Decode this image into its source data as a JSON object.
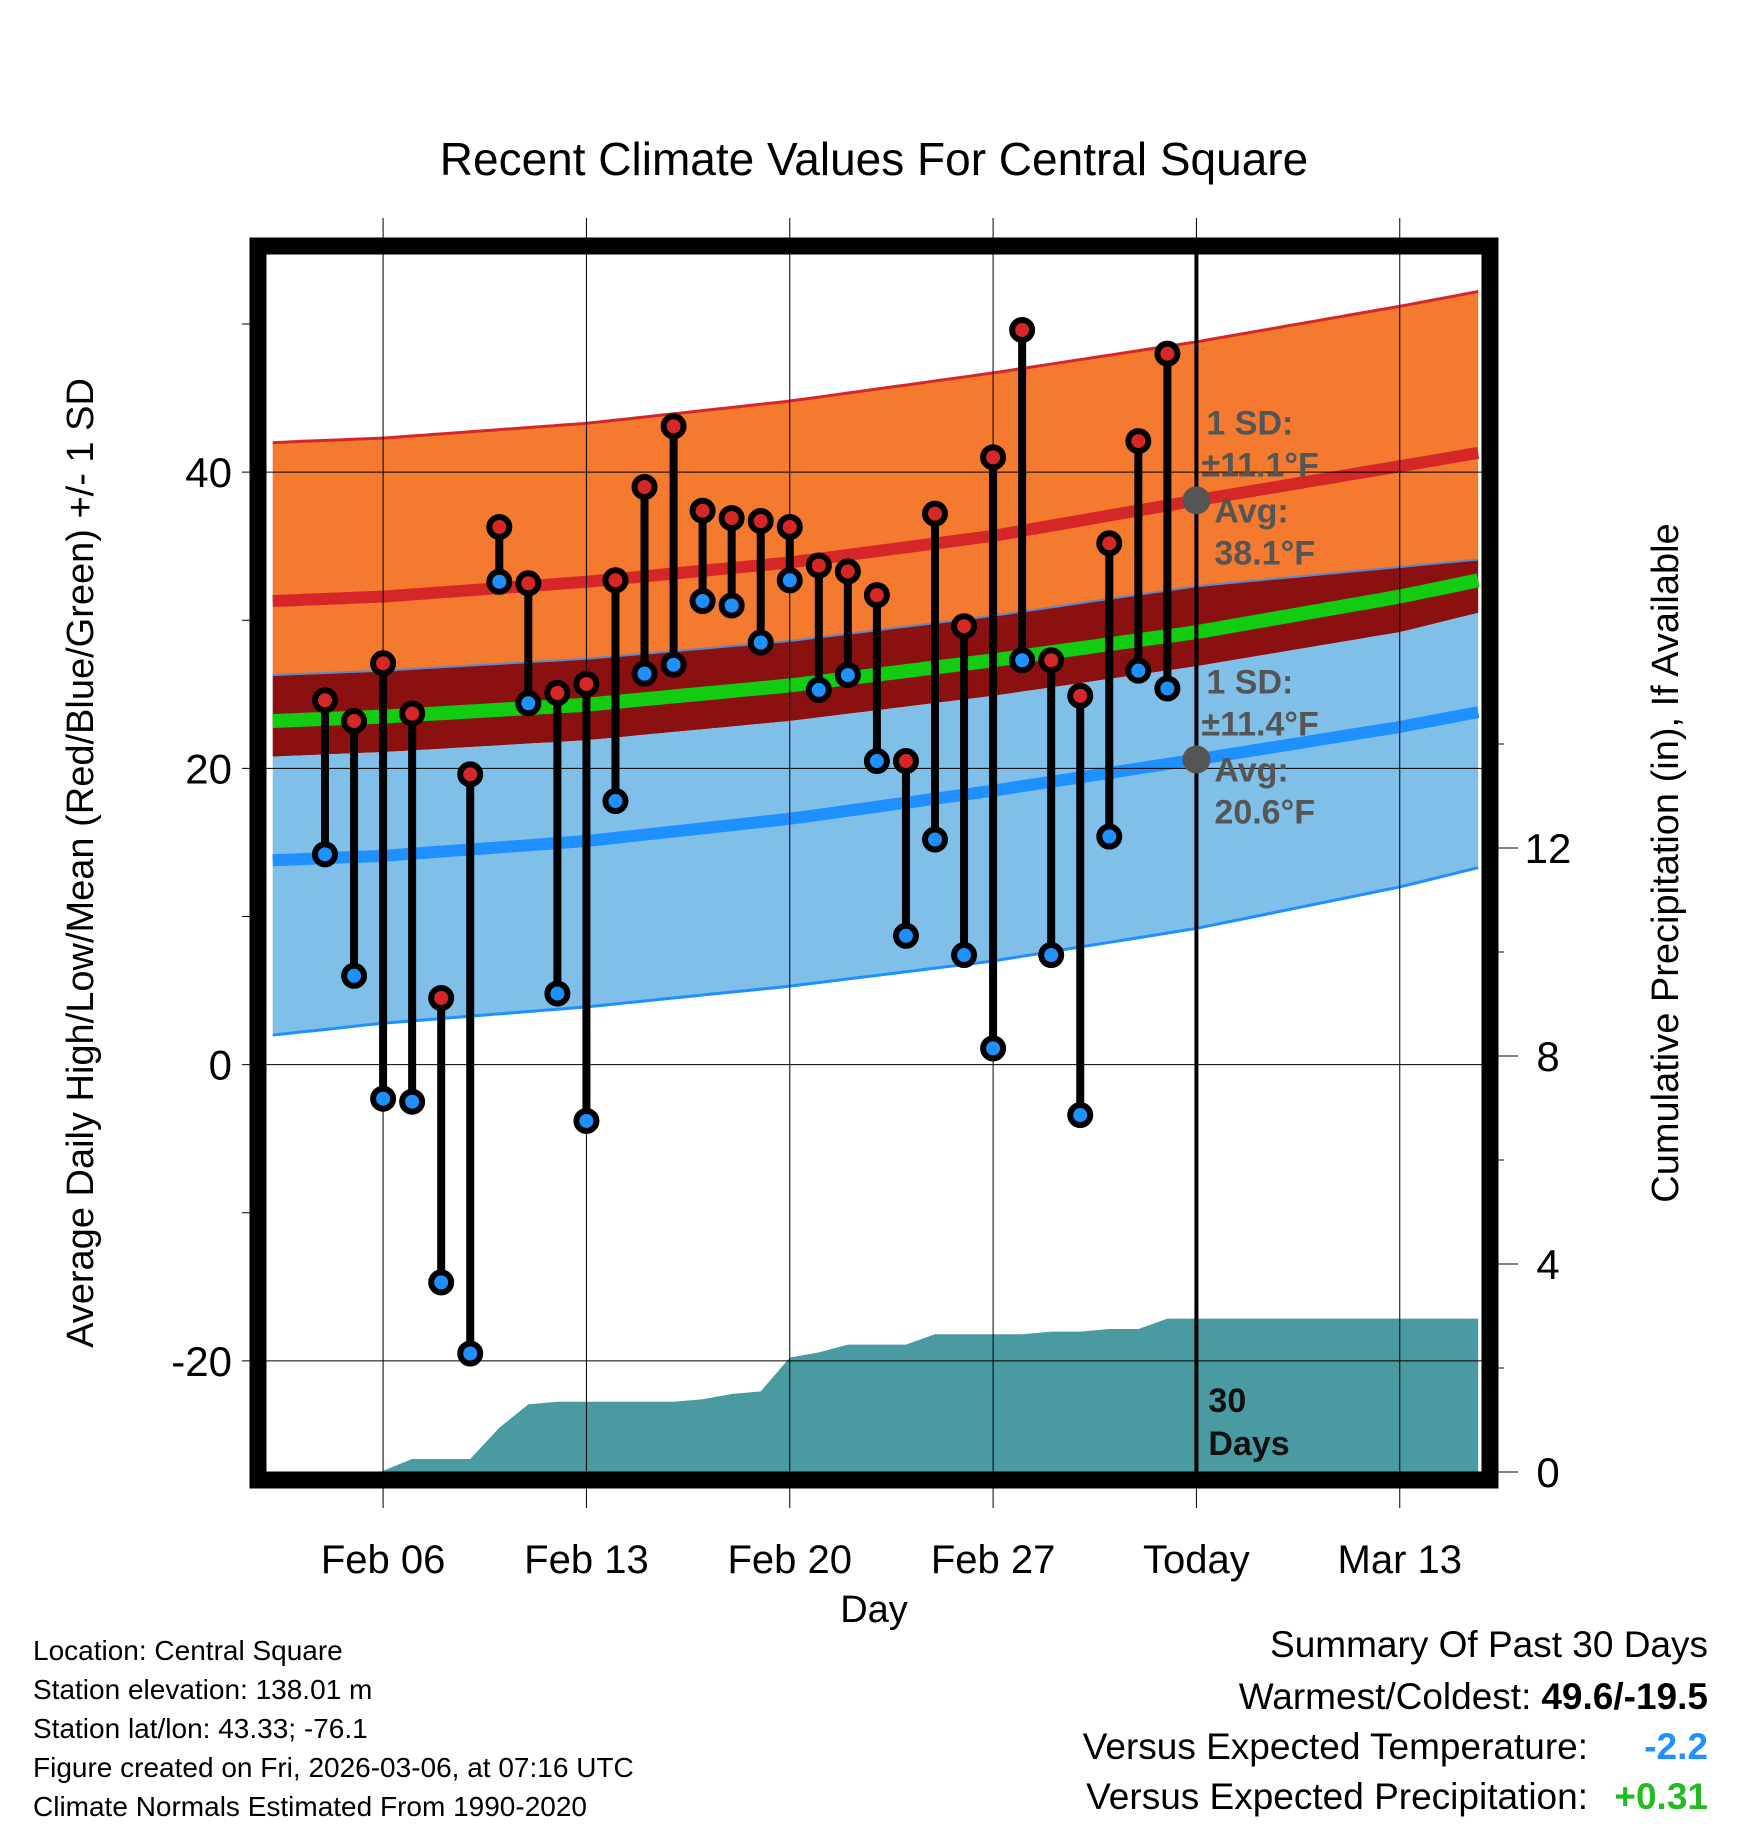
{
  "chart_data": {
    "type": "line",
    "title": "Recent Climate Values For Central Square",
    "xlabel": "Day",
    "ylabel": "Average Daily High/Low/Mean (Red/Blue/Green) +/- 1 SD",
    "y2label": "Cumulative Precipitation (in), If Available",
    "ylim": [
      -27.5,
      55
    ],
    "y2lim": [
      0,
      23.5
    ],
    "y_ticks": [
      -20,
      0,
      20,
      40
    ],
    "y_tick_labels": [
      "-20",
      "0",
      "20",
      "40"
    ],
    "y2_ticks": [
      0,
      4,
      8,
      12
    ],
    "y2_tick_labels": [
      "0",
      "4",
      "8",
      "12"
    ],
    "x_range": [
      -32.1,
      9.9
    ],
    "x_ticks": [
      -28,
      -21,
      -14,
      -7,
      0,
      7
    ],
    "x_tick_labels": [
      "Feb 06",
      "Feb 13",
      "Feb 20",
      "Feb 27",
      "Today",
      "Mar 13"
    ],
    "grid": true,
    "normals": {
      "x": [
        -31.8,
        -28,
        -21,
        -14,
        -7,
        0,
        7,
        9.7
      ],
      "high_upper": [
        42,
        42.3,
        43.3,
        44.8,
        46.7,
        48.8,
        51.2,
        52.2
      ],
      "high_avg": [
        31.3,
        31.6,
        32.6,
        33.9,
        35.7,
        38.1,
        40.4,
        41.3
      ],
      "mean_upper": [
        26.3,
        26.6,
        27.4,
        28.6,
        30.3,
        32.3,
        33.6,
        34.1
      ],
      "mean": [
        23.2,
        23.5,
        24.3,
        25.6,
        27.3,
        29.2,
        31.6,
        32.7
      ],
      "mean_lower": [
        20.8,
        21.1,
        21.9,
        23.2,
        24.9,
        26.9,
        29.2,
        30.5
      ],
      "low_avg": [
        13.8,
        14.1,
        15.1,
        16.6,
        18.5,
        20.6,
        22.8,
        23.8
      ],
      "low_lower": [
        2,
        2.8,
        3.9,
        5.3,
        7,
        9.2,
        12,
        13.3
      ]
    },
    "days_x": [
      -30,
      -29,
      -28,
      -27,
      -26,
      -25,
      -24,
      -23,
      -22,
      -21,
      -20,
      -19,
      -18,
      -17,
      -16,
      -15,
      -14,
      -13,
      -12,
      -11,
      -10,
      -9,
      -8,
      -7,
      -6,
      -5,
      -4,
      -3,
      -2,
      -1
    ],
    "series": [
      {
        "name": "Daily High",
        "color": "#d62728",
        "values": [
          24.6,
          23.2,
          27.1,
          23.7,
          4.5,
          19.6,
          36.3,
          32.5,
          25.1,
          25.7,
          32.7,
          39.0,
          43.1,
          37.4,
          36.9,
          36.7,
          36.3,
          33.7,
          33.3,
          31.7,
          20.5,
          37.2,
          29.6,
          41.0,
          49.6,
          27.3,
          24.9,
          35.2,
          42.1,
          48.0
        ]
      },
      {
        "name": "Daily Low",
        "color": "#1e90ff",
        "values": [
          14.2,
          6.0,
          -2.3,
          -2.5,
          -14.7,
          -19.5,
          32.6,
          24.4,
          4.8,
          -3.8,
          17.8,
          26.4,
          27.0,
          31.3,
          31.0,
          28.5,
          32.7,
          25.3,
          26.3,
          20.5,
          8.7,
          15.2,
          7.4,
          1.1,
          27.3,
          7.4,
          -3.4,
          15.4,
          26.6,
          25.4
        ]
      }
    ],
    "precipitation": {
      "x": [
        -28.1,
        -27,
        -26,
        -25,
        -24,
        -23,
        -22,
        -21,
        -20,
        -19,
        -18,
        -17,
        -16,
        -15,
        -14,
        -13,
        -12,
        -11,
        -10,
        -9,
        -8,
        -7,
        -6,
        -5,
        -4,
        -3,
        -2,
        -1,
        0,
        9.7
      ],
      "values": [
        0,
        0.25,
        0.25,
        0.25,
        0.85,
        1.3,
        1.35,
        1.35,
        1.35,
        1.35,
        1.35,
        1.4,
        1.5,
        1.55,
        2.2,
        2.3,
        2.45,
        2.45,
        2.45,
        2.65,
        2.65,
        2.65,
        2.65,
        2.7,
        2.7,
        2.75,
        2.75,
        2.95,
        2.95,
        2.95
      ]
    },
    "annotations": {
      "high_sd_label": "1 SD:",
      "high_sd_value": "±11.1°F",
      "high_avg_label": "Avg:",
      "high_avg_value": "38.1°F",
      "low_sd_label": "1 SD:",
      "low_sd_value": "±11.4°F",
      "low_avg_label": "Avg:",
      "low_avg_value": "20.6°F",
      "high_avg_y": 38.1,
      "low_avg_y": 20.6,
      "window_label_1": "30",
      "window_label_2": "Days"
    }
  },
  "footer": {
    "location": "Location: Central Square",
    "elevation": "Station elevation: 138.01 m",
    "latlon": "Station lat/lon: 43.33; -76.1",
    "created": "Figure created on Fri, 2026-03-06, at 07:16 UTC",
    "normals": "Climate Normals Estimated From 1990-2020"
  },
  "summary": {
    "title": "Summary Of Past 30 Days",
    "warm_cold_label": "Warmest/Coldest:",
    "warm_cold_value": "49.6/-19.5",
    "temp_label": "Versus Expected Temperature:",
    "temp_value": "-2.2",
    "temp_color": "#1e90ff",
    "precip_label": "Versus Expected Precipitation:",
    "precip_value": "+0.31",
    "precip_color": "#22bb22"
  },
  "colors": {
    "high_band": "#f47a30",
    "high_line": "#d62728",
    "mean_band": "#8b1010",
    "mean_line": "#11cc11",
    "low_band": "#80c0e8",
    "low_line": "#1e90ff",
    "precip": "#4a9aa2",
    "annotation": "#555555"
  }
}
